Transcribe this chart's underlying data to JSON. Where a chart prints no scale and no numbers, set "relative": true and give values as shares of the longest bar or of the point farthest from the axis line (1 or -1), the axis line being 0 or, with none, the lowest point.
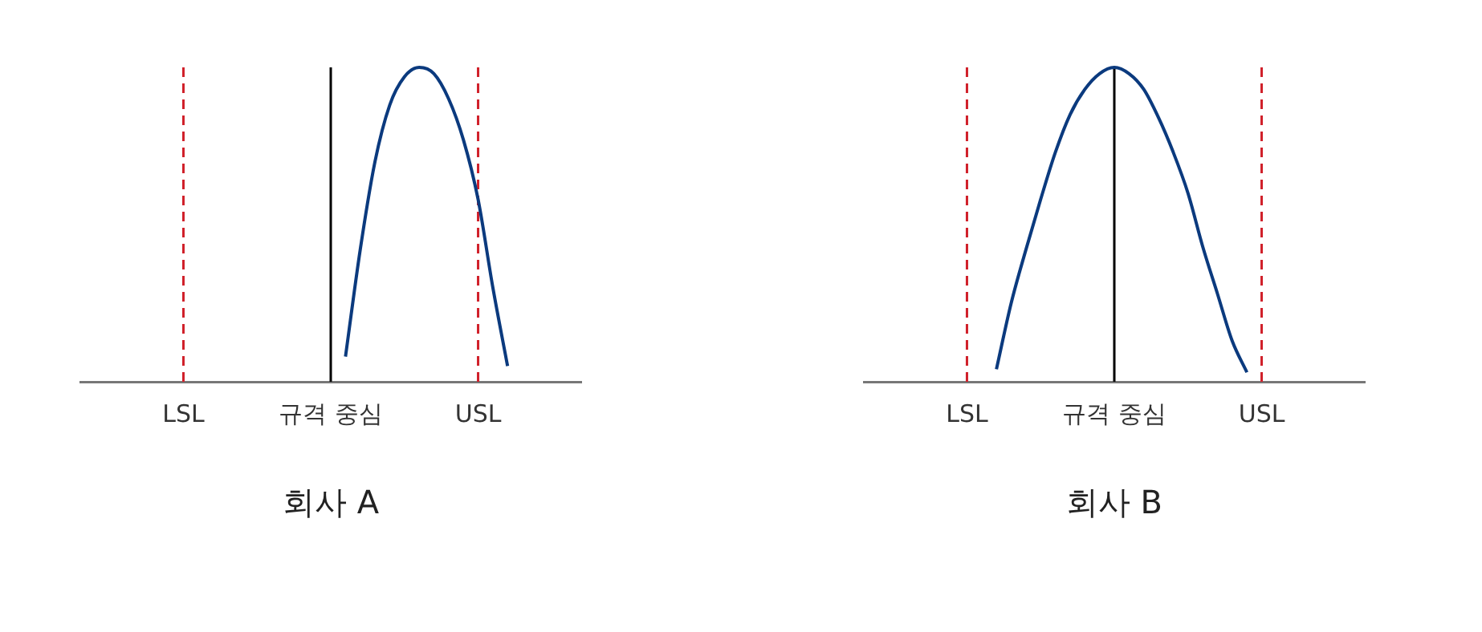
{
  "chart_data": [
    {
      "type": "line",
      "title": "회사 A",
      "relative": true,
      "marker": "none",
      "line_style": "solid",
      "categories": [
        null,
        null,
        null,
        null,
        null,
        null,
        null,
        "LSL",
        null,
        null,
        null,
        null,
        null,
        null,
        null,
        null,
        null,
        "규격 중심",
        null,
        null,
        null,
        null,
        null,
        null,
        null,
        null,
        null,
        "USL",
        null,
        null,
        null,
        null,
        null,
        null,
        null
      ],
      "series": [
        {
          "color": "#0b3a7e",
          "values": [
            null,
            null,
            null,
            null,
            null,
            null,
            null,
            null,
            null,
            null,
            null,
            null,
            null,
            null,
            null,
            null,
            null,
            null,
            0.08,
            0.42,
            0.7,
            0.88,
            0.97,
            1,
            0.98,
            0.9,
            0.77,
            0.58,
            0.3,
            0.05,
            null,
            null,
            null,
            null,
            null
          ]
        }
      ],
      "ref_lines": [
        {
          "axis": "x",
          "value": "LSL",
          "color": "#d0202a",
          "line_style": "dashed"
        },
        {
          "axis": "x",
          "value": "USL",
          "color": "#d0202a",
          "line_style": "dashed"
        },
        {
          "axis": "x",
          "value": "규격 중심",
          "color": "#000000",
          "line_style": "solid"
        }
      ]
    },
    {
      "type": "line",
      "title": "회사 B",
      "relative": true,
      "marker": "none",
      "line_style": "solid",
      "categories": [
        null,
        null,
        null,
        null,
        null,
        null,
        null,
        "LSL",
        null,
        null,
        null,
        null,
        null,
        null,
        null,
        null,
        null,
        "규격 중심",
        null,
        null,
        null,
        null,
        null,
        null,
        null,
        null,
        null,
        "USL",
        null,
        null,
        null,
        null,
        null,
        null,
        null
      ],
      "series": [
        {
          "color": "#0b3a7e",
          "values": [
            null,
            null,
            null,
            null,
            null,
            null,
            null,
            null,
            null,
            0.04,
            0.25,
            0.42,
            0.58,
            0.73,
            0.85,
            0.93,
            0.98,
            1,
            0.98,
            0.93,
            0.84,
            0.73,
            0.6,
            0.43,
            0.28,
            0.13,
            0.03,
            null,
            null,
            null,
            null,
            null,
            null,
            null,
            null
          ]
        }
      ],
      "ref_lines": [
        {
          "axis": "x",
          "value": "LSL",
          "color": "#d0202a",
          "line_style": "dashed"
        },
        {
          "axis": "x",
          "value": "USL",
          "color": "#d0202a",
          "line_style": "dashed"
        },
        {
          "axis": "x",
          "value": "규격 중심",
          "color": "#000000",
          "line_style": "solid"
        }
      ]
    }
  ]
}
